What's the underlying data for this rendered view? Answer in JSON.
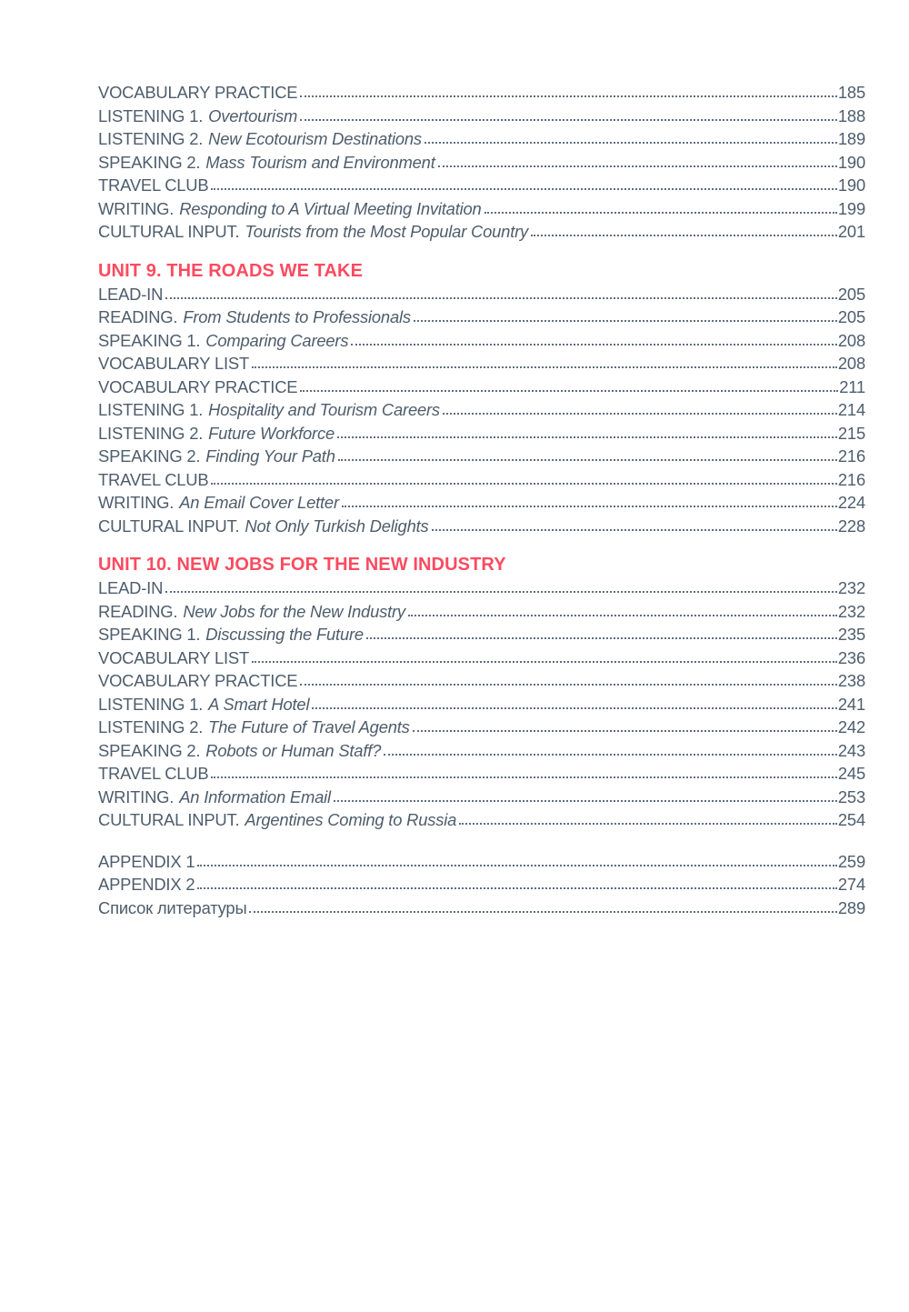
{
  "page": {
    "background": "#ffffff",
    "text_color": "#4e5d6c",
    "accent_color": "#fb4b60",
    "leader_dot_color": "#5f6e7d"
  },
  "toc": {
    "sections": [
      {
        "heading": "",
        "entries": [
          {
            "label": "VOCABULARY PRACTICE",
            "subtitle": "",
            "page": "185"
          },
          {
            "label": "LISTENING 1.",
            "subtitle": "Overtourism",
            "page": "188"
          },
          {
            "label": "LISTENING 2.",
            "subtitle": "New Ecotourism Destinations",
            "page": "189"
          },
          {
            "label": "SPEAKING 2.",
            "subtitle": "Mass Tourism and Environment",
            "page": "190"
          },
          {
            "label": "TRAVEL CLUB",
            "subtitle": "",
            "page": "190"
          },
          {
            "label": "WRITING.",
            "subtitle": "Responding to A Virtual Meeting Invitation",
            "page": "199"
          },
          {
            "label": "CULTURAL INPUT.",
            "subtitle": "Tourists from the Most Popular Country",
            "page": "201"
          }
        ]
      },
      {
        "heading": "UNIT 9. THE ROADS WE TAKE",
        "entries": [
          {
            "label": "LEAD-IN",
            "subtitle": "",
            "page": "205"
          },
          {
            "label": "READING.",
            "subtitle": "From Students to Professionals",
            "page": "205"
          },
          {
            "label": "SPEAKING 1.",
            "subtitle": "Comparing Careers",
            "page": "208"
          },
          {
            "label": "VOCABULARY LIST",
            "subtitle": "",
            "page": "208"
          },
          {
            "label": "VOCABULARY PRACTICE",
            "subtitle": "",
            "page": "211"
          },
          {
            "label": "LISTENING 1.",
            "subtitle": "Hospitality and Tourism Careers",
            "page": "214"
          },
          {
            "label": "LISTENING 2.",
            "subtitle": "Future Workforce",
            "page": "215"
          },
          {
            "label": "SPEAKING 2.",
            "subtitle": "Finding Your Path",
            "page": "216"
          },
          {
            "label": "TRAVEL CLUB",
            "subtitle": "",
            "page": "216"
          },
          {
            "label": "WRITING.",
            "subtitle": "An Email Cover Letter",
            "page": "224"
          },
          {
            "label": "CULTURAL INPUT.",
            "subtitle": "Not Only Turkish Delights",
            "page": "228"
          }
        ]
      },
      {
        "heading": "UNIT 10. NEW JOBS FOR THE NEW INDUSTRY",
        "entries": [
          {
            "label": "LEAD-IN",
            "subtitle": "",
            "page": "232"
          },
          {
            "label": "READING.",
            "subtitle": "New Jobs for the New Industry",
            "page": "232"
          },
          {
            "label": "SPEAKING 1.",
            "subtitle": "Discussing the Future",
            "page": "235"
          },
          {
            "label": "VOCABULARY LIST",
            "subtitle": "",
            "page": "236"
          },
          {
            "label": "VOCABULARY PRACTICE",
            "subtitle": "",
            "page": "238"
          },
          {
            "label": "LISTENING 1.",
            "subtitle": "A Smart Hotel",
            "page": "241"
          },
          {
            "label": "LISTENING 2.",
            "subtitle": "The Future of Travel Agents",
            "page": "242"
          },
          {
            "label": "SPEAKING 2.",
            "subtitle": "Robots or Human Staff?",
            "page": "243"
          },
          {
            "label": "TRAVEL CLUB",
            "subtitle": "",
            "page": "245"
          },
          {
            "label": "WRITING.",
            "subtitle": "An Information Email",
            "page": "253"
          },
          {
            "label": "CULTURAL INPUT.",
            "subtitle": "Argentines Coming to Russia",
            "page": "254"
          }
        ]
      },
      {
        "heading": "",
        "entries": [
          {
            "label": "APPENDIX 1",
            "subtitle": "",
            "page": "259"
          },
          {
            "label": "APPENDIX 2",
            "subtitle": "",
            "page": "274"
          },
          {
            "label": "Список литературы",
            "subtitle": "",
            "page": "289"
          }
        ]
      }
    ]
  }
}
